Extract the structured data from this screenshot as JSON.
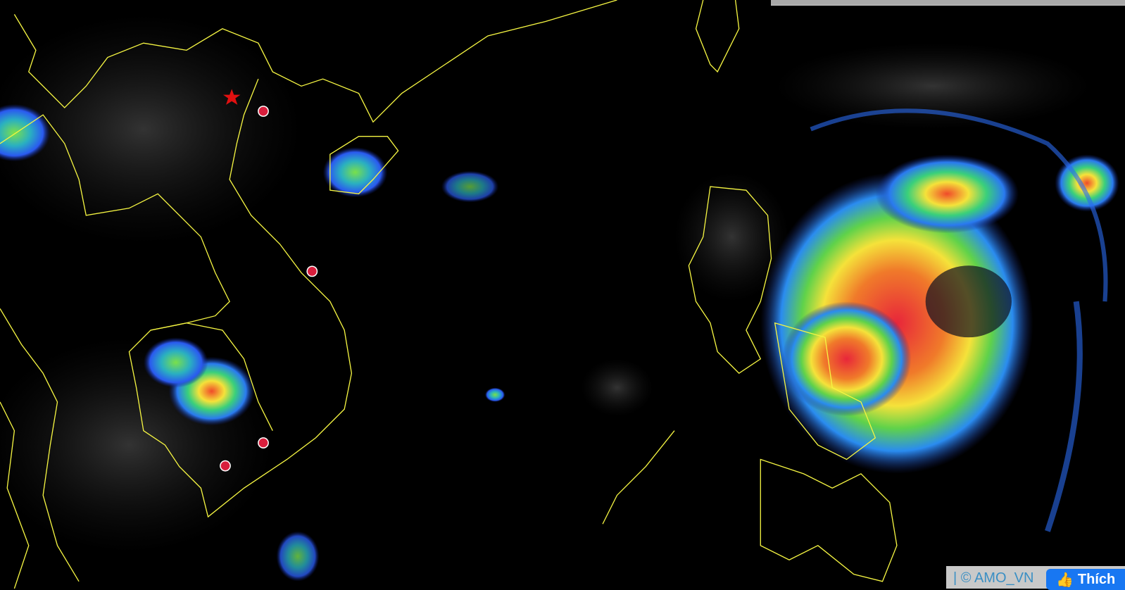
{
  "map": {
    "type": "satellite-infrared-enhanced",
    "colors": {
      "background": "#000000",
      "borders": "#f5f542",
      "markers": "#d81e3c",
      "star": "#e01010"
    },
    "markers": [
      "star",
      "circle",
      "circle",
      "circle",
      "circle"
    ]
  },
  "attribution": {
    "text": "| © AMO_VN"
  },
  "like_button": {
    "label": "Thích",
    "icon": "thumbs-up-icon"
  }
}
